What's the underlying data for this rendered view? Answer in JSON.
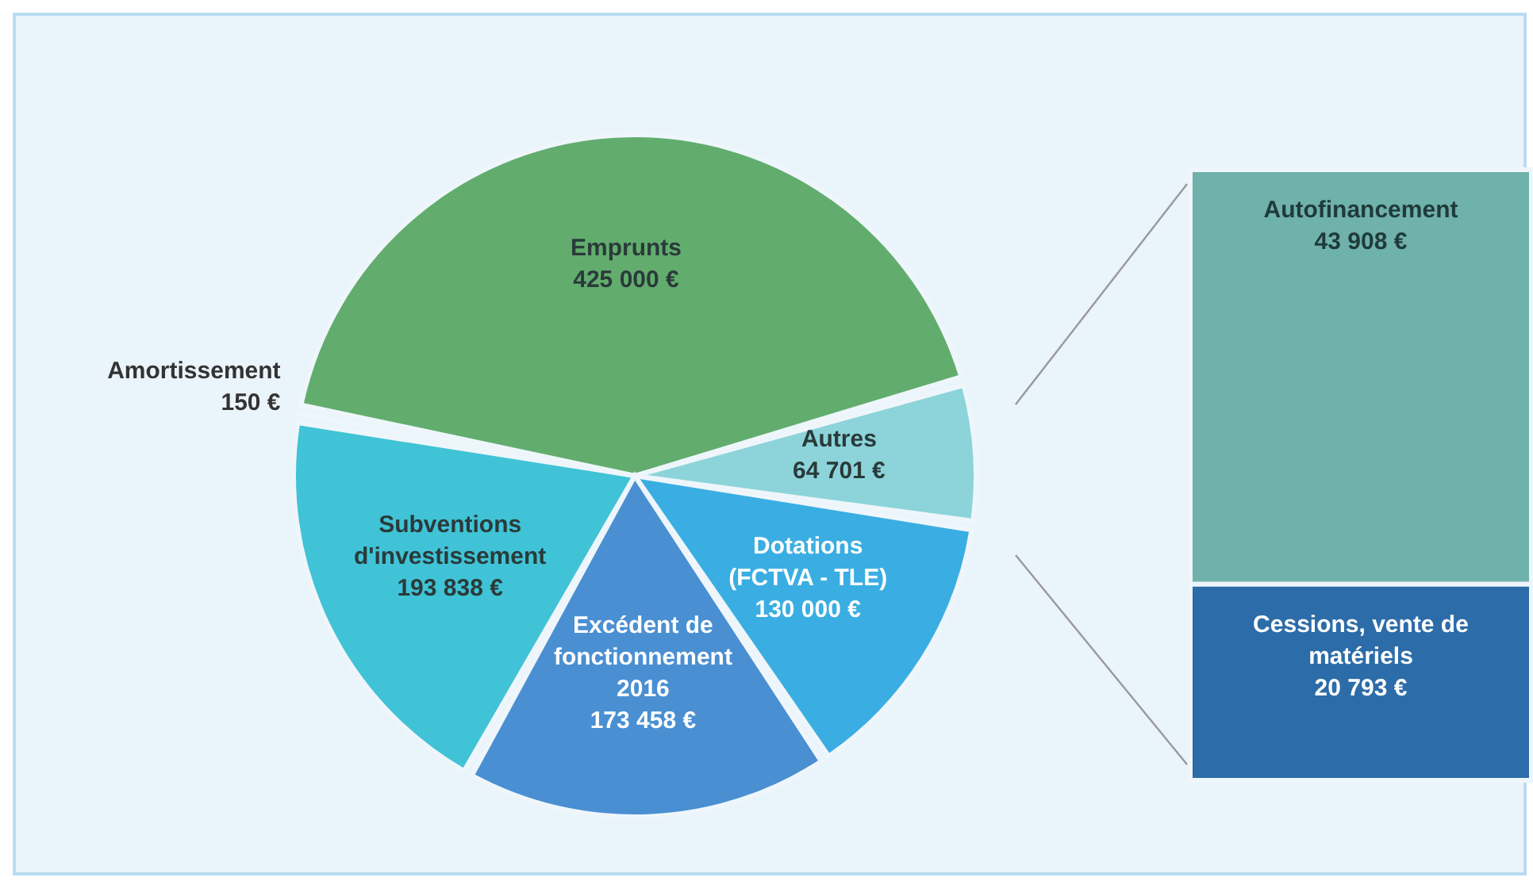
{
  "chart_data": [
    {
      "type": "pie",
      "categories": [
        "Emprunts",
        "Autres",
        "Dotations (FCTVA - TLE)",
        "Excédent de fonctionnement 2016",
        "Subventions d'investissement",
        "Amortissement"
      ],
      "values": [
        425000,
        64701,
        130000,
        173458,
        193838,
        150
      ],
      "colors": [
        "#62ad6e",
        "#8cd4d9",
        "#3aaee2",
        "#4a8fd2",
        "#40c3d6",
        "#a8e2ec"
      ],
      "value_labels": [
        "425 000 €",
        "64 701 €",
        "130 000 €",
        "173 458 €",
        "193 838 €",
        "150 €"
      ]
    },
    {
      "type": "bar",
      "stacked": true,
      "categories": [
        null
      ],
      "series": [
        {
          "name": "Cessions, vente de matériels",
          "color": "#2c6ca8",
          "values": [
            20793
          ],
          "value_labels": [
            "20 793 €"
          ]
        },
        {
          "name": "Autofinancement",
          "color": "#6fb1ab",
          "values": [
            43908
          ],
          "value_labels": [
            "43 908 €"
          ]
        }
      ]
    }
  ]
}
